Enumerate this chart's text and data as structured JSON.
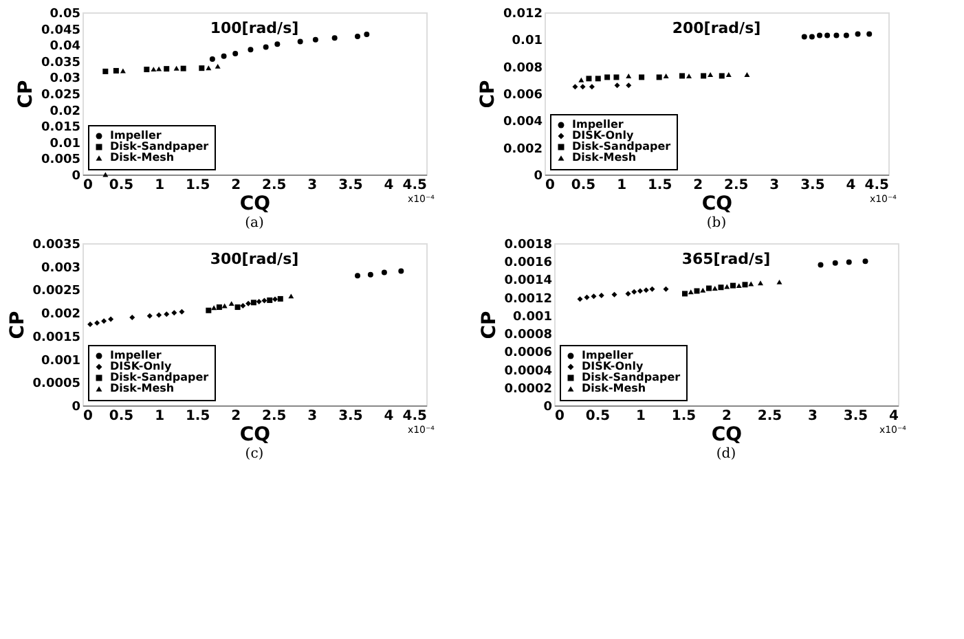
{
  "chart_data": [
    {
      "type": "scatter",
      "title": "100[rad/s]",
      "xlabel": "CQ",
      "ylabel": "CP",
      "annotations": [
        "x10⁻⁴",
        "(a)"
      ],
      "xlim": [
        0,
        4.5
      ],
      "ylim": [
        0,
        0.05
      ],
      "xticks": [
        0,
        0.5,
        1,
        1.5,
        2,
        2.5,
        3,
        3.5,
        4,
        4.5
      ],
      "yticks": [
        0,
        0.005,
        0.01,
        0.015,
        0.02,
        0.025,
        0.03,
        0.035,
        0.04,
        0.045,
        0.05
      ],
      "grid": false,
      "legend": "bottom left",
      "series": [
        {
          "name": "Impeller",
          "color": "#000000",
          "marker": "circle",
          "x": [
            1.7,
            1.85,
            2.0,
            2.2,
            2.4,
            2.55,
            2.85,
            3.05,
            3.3,
            3.6,
            3.72
          ],
          "values": [
            0.0356,
            0.0365,
            0.0373,
            0.0385,
            0.0393,
            0.0402,
            0.041,
            0.0416,
            0.0421,
            0.0426,
            0.0432
          ]
        },
        {
          "name": "Disk-Sandpaper",
          "color": "#000000",
          "marker": "square",
          "x": [
            0.3,
            0.44,
            0.84,
            1.1,
            1.32,
            1.56
          ],
          "values": [
            0.0318,
            0.032,
            0.0324,
            0.0326,
            0.0327,
            0.0328
          ]
        },
        {
          "name": "Disk-Mesh",
          "color": "#000000",
          "marker": "triangle",
          "x": [
            0.3,
            0.53,
            0.93,
            1.0,
            1.23,
            1.65,
            1.77
          ],
          "values": [
            0.0,
            0.032,
            0.0325,
            0.0326,
            0.0328,
            0.0329,
            0.0334
          ]
        }
      ]
    },
    {
      "type": "scatter",
      "title": "200[rad/s]",
      "xlabel": "CQ",
      "ylabel": "CP",
      "annotations": [
        "x10⁻⁴",
        "(b)"
      ],
      "xlim": [
        0,
        4.5
      ],
      "ylim": [
        0,
        0.012
      ],
      "xticks": [
        0,
        0.5,
        1,
        1.5,
        2,
        2.5,
        3,
        3.5,
        4,
        4.5
      ],
      "yticks": [
        0,
        0.002,
        0.004,
        0.006,
        0.008,
        0.01,
        0.012
      ],
      "grid": false,
      "legend": "bottom left",
      "series": [
        {
          "name": "Impeller",
          "color": "#000000",
          "marker": "circle",
          "x": [
            3.4,
            3.5,
            3.6,
            3.7,
            3.82,
            3.95,
            4.1,
            4.25
          ],
          "values": [
            0.0102,
            0.0102,
            0.0103,
            0.0103,
            0.0103,
            0.0103,
            0.0104,
            0.0104
          ]
        },
        {
          "name": "DISK-Only",
          "color": "#000000",
          "marker": "diamond",
          "x": [
            0.4,
            0.5,
            0.62,
            0.95,
            1.1
          ],
          "values": [
            0.0065,
            0.0065,
            0.0065,
            0.0066,
            0.0066
          ]
        },
        {
          "name": "Disk-Sandpaper",
          "color": "#000000",
          "marker": "square",
          "x": [
            0.58,
            0.7,
            0.82,
            0.94,
            1.27,
            1.5,
            1.8,
            2.08,
            2.32
          ],
          "values": [
            0.0071,
            0.0071,
            0.0072,
            0.0072,
            0.0072,
            0.0072,
            0.0073,
            0.0073,
            0.0073
          ]
        },
        {
          "name": "Disk-Mesh",
          "color": "#000000",
          "marker": "triangle",
          "x": [
            0.48,
            1.1,
            1.59,
            1.89,
            2.17,
            2.41,
            2.65
          ],
          "values": [
            0.007,
            0.0073,
            0.0073,
            0.0073,
            0.0074,
            0.0074,
            0.0074
          ]
        }
      ]
    },
    {
      "type": "scatter",
      "title": "300[rad/s]",
      "xlabel": "CQ",
      "ylabel": "CP",
      "annotations": [
        "x10⁻⁴",
        "(c)"
      ],
      "xlim": [
        0,
        4.5
      ],
      "ylim": [
        0,
        0.0035
      ],
      "xticks": [
        0,
        0.5,
        1,
        1.5,
        2,
        2.5,
        3,
        3.5,
        4,
        4.5
      ],
      "yticks": [
        0,
        0.0005,
        0.001,
        0.0015,
        0.002,
        0.0025,
        0.003,
        0.0035
      ],
      "grid": false,
      "legend": "bottom left",
      "series": [
        {
          "name": "Impeller",
          "color": "#000000",
          "marker": "circle",
          "x": [
            3.6,
            3.77,
            3.95,
            4.17
          ],
          "values": [
            0.0028,
            0.00282,
            0.00287,
            0.0029
          ]
        },
        {
          "name": "DISK-Only",
          "color": "#000000",
          "marker": "diamond",
          "x": [
            0.1,
            0.19,
            0.28,
            0.37,
            0.65,
            0.88,
            1.0,
            1.1,
            1.2,
            1.3,
            2.1,
            2.17,
            2.31,
            2.38,
            2.52
          ],
          "values": [
            0.00175,
            0.00178,
            0.00182,
            0.00186,
            0.0019,
            0.00193,
            0.00195,
            0.00197,
            0.002,
            0.00202,
            0.00215,
            0.0022,
            0.00224,
            0.00226,
            0.00229
          ]
        },
        {
          "name": "Disk-Sandpaper",
          "color": "#000000",
          "marker": "square",
          "x": [
            1.65,
            1.79,
            2.03,
            2.24,
            2.45,
            2.59
          ],
          "values": [
            0.00205,
            0.00212,
            0.00212,
            0.00222,
            0.00227,
            0.0023
          ]
        },
        {
          "name": "Disk-Mesh",
          "color": "#000000",
          "marker": "triangle",
          "x": [
            1.72,
            1.86,
            1.95,
            2.73
          ],
          "values": [
            0.00211,
            0.00215,
            0.0022,
            0.00236
          ]
        }
      ]
    },
    {
      "type": "scatter",
      "title": "365[rad/s]",
      "xlabel": "CQ",
      "ylabel": "CP",
      "annotations": [
        "x10⁻⁴",
        "(d)"
      ],
      "xlim": [
        0,
        4
      ],
      "ylim": [
        0,
        0.0018
      ],
      "xticks": [
        0,
        0.5,
        1,
        1.5,
        2,
        2.5,
        3,
        3.5,
        4
      ],
      "yticks": [
        0,
        0.0002,
        0.0004,
        0.0006,
        0.0008,
        0.001,
        0.0012,
        0.0014,
        0.0016,
        0.0018
      ],
      "grid": false,
      "legend": "bottom left",
      "series": [
        {
          "name": "Impeller",
          "color": "#000000",
          "marker": "circle",
          "x": [
            3.1,
            3.27,
            3.43,
            3.62
          ],
          "values": [
            0.00156,
            0.00158,
            0.00159,
            0.0016
          ]
        },
        {
          "name": "DISK-Only",
          "color": "#000000",
          "marker": "diamond",
          "x": [
            0.3,
            0.38,
            0.46,
            0.55,
            0.7,
            0.86,
            0.93,
            1.0,
            1.07,
            1.14,
            1.3
          ],
          "values": [
            0.00118,
            0.0012,
            0.00121,
            0.00122,
            0.00123,
            0.00124,
            0.00126,
            0.00127,
            0.00128,
            0.00129,
            0.00129
          ]
        },
        {
          "name": "Disk-Sandpaper",
          "color": "#000000",
          "marker": "square",
          "x": [
            1.52,
            1.66,
            1.8,
            1.94,
            2.08,
            2.22
          ],
          "values": [
            0.00124,
            0.00127,
            0.0013,
            0.00131,
            0.00133,
            0.00134
          ]
        },
        {
          "name": "Disk-Mesh",
          "color": "#000000",
          "marker": "triangle",
          "x": [
            1.59,
            1.73,
            1.87,
            2.01,
            2.15,
            2.29,
            2.4,
            2.62
          ],
          "values": [
            0.00126,
            0.00128,
            0.0013,
            0.00132,
            0.00133,
            0.00135,
            0.00136,
            0.00137
          ]
        }
      ]
    }
  ]
}
